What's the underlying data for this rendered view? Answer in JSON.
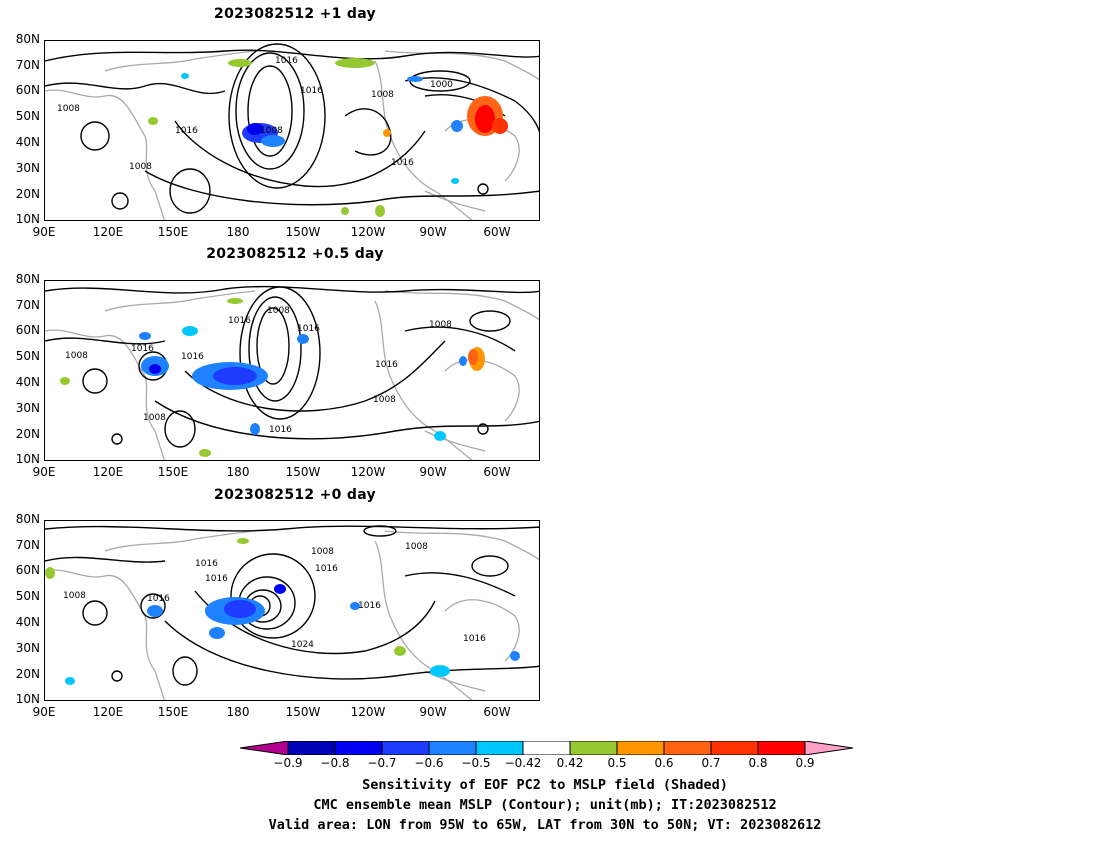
{
  "panels": [
    {
      "title": "2023082512  +1 day",
      "contour_labels": [
        "1016",
        "1016",
        "1008",
        "1000",
        "1008",
        "1016",
        "1008",
        "1016",
        "1008"
      ]
    },
    {
      "title": "2023082512  +0.5 day",
      "contour_labels": [
        "1008",
        "1016",
        "1016",
        "1008",
        "1008",
        "1016",
        "1016",
        "1016",
        "1008",
        "1008",
        "1016"
      ]
    },
    {
      "title": "2023082512  +0 day",
      "contour_labels": [
        "1008",
        "1008",
        "1016",
        "1016",
        "1016",
        "1008",
        "1016",
        "1016",
        "1016",
        "1024"
      ]
    }
  ],
  "lat_labels": [
    "80N",
    "70N",
    "60N",
    "50N",
    "40N",
    "30N",
    "20N",
    "10N"
  ],
  "lon_labels": [
    "90E",
    "120E",
    "150E",
    "180",
    "150W",
    "120W",
    "90W",
    "60W"
  ],
  "colorbar": {
    "ticks": [
      "−0.9",
      "−0.8",
      "−0.7",
      "−0.6",
      "−0.5",
      "−0.42",
      "0.42",
      "0.5",
      "0.6",
      "0.7",
      "0.8",
      "0.9"
    ],
    "colors": [
      "#b0008c",
      "#0000b4",
      "#0000f0",
      "#1e3cff",
      "#1e82ff",
      "#00c8ff",
      "#ffffff",
      "#96c832",
      "#ff9600",
      "#ff6414",
      "#ff3200",
      "#ff0000",
      "#ffa0c8"
    ]
  },
  "caption": {
    "line1": "Sensitivity of EOF PC2 to MSLP field (Shaded)",
    "line2": "CMC ensemble mean MSLP (Contour); unit(mb); IT:2023082512",
    "line3": "Valid area: LON from 95W to 65W, LAT from 30N to 50N; VT: 2023082612"
  }
}
